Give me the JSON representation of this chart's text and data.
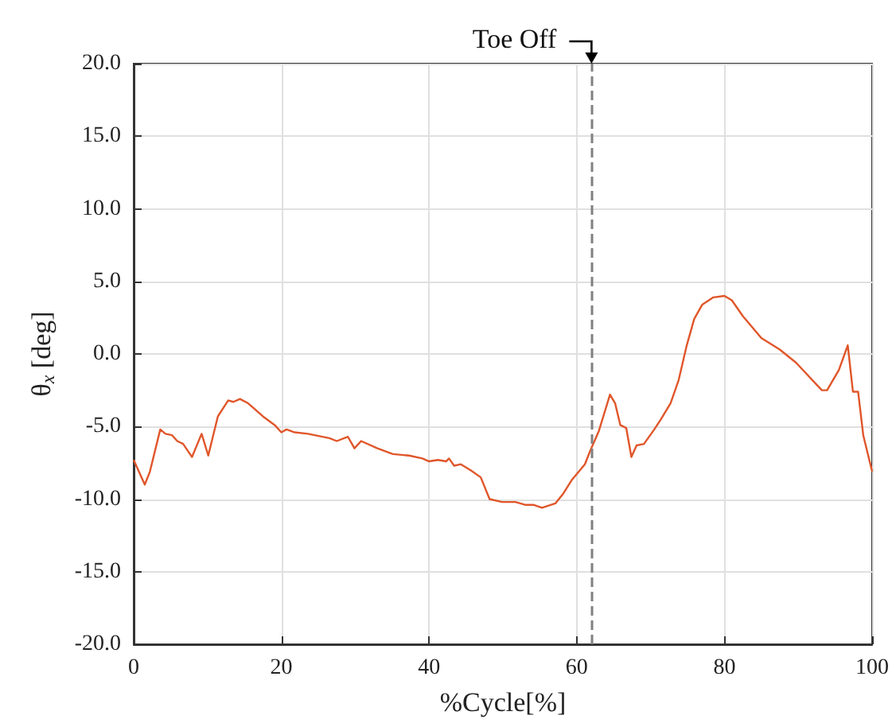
{
  "chart_data": {
    "type": "line",
    "xlabel": "%Cycle[%]",
    "ylabel": "θ$_{x}$ [deg]",
    "series": [
      {
        "color": "#e0562a",
        "x": [
          0,
          1.5,
          2.2,
          3.6,
          4.3,
          5.2,
          5.9,
          6.7,
          7.9,
          9.2,
          10.1,
          11.4,
          12.8,
          13.5,
          14.4,
          15.5,
          17.5,
          19.1,
          20,
          20.7,
          21.8,
          23.6,
          26.5,
          27.5,
          29,
          29.9,
          30.8,
          33,
          35.1,
          37.3,
          39.1,
          40,
          41.2,
          42.3,
          42.7,
          43.4,
          44.3,
          45.6,
          47,
          48.2,
          49.9,
          51.7,
          53.1,
          54.2,
          55.3,
          57.1,
          58.2,
          59.3,
          61.1,
          61.8,
          63,
          64.5,
          65.2,
          65.9,
          66.7,
          67.4,
          68.1,
          69.1,
          70.5,
          71.4,
          72.7,
          73.8,
          74.9,
          75.9,
          77,
          78.5,
          80,
          81,
          82.5,
          85,
          87.5,
          89.7,
          91.9,
          93.2,
          93.9,
          95.5,
          96.7,
          97.4,
          98.1,
          98.8,
          100
        ],
        "values": [
          -7.3,
          -9.0,
          -8.1,
          -5.2,
          -5.5,
          -5.6,
          -6.0,
          -6.2,
          -7.1,
          -5.5,
          -7.0,
          -4.3,
          -3.2,
          -3.3,
          -3.1,
          -3.4,
          -4.3,
          -4.9,
          -5.4,
          -5.2,
          -5.4,
          -5.5,
          -5.8,
          -6.0,
          -5.7,
          -6.5,
          -6.0,
          -6.5,
          -6.9,
          -7.0,
          -7.2,
          -7.4,
          -7.3,
          -7.4,
          -7.2,
          -7.7,
          -7.6,
          -8.0,
          -8.5,
          -10.0,
          -10.2,
          -10.2,
          -10.4,
          -10.4,
          -10.6,
          -10.3,
          -9.6,
          -8.7,
          -7.6,
          -6.7,
          -5.3,
          -2.8,
          -3.4,
          -4.9,
          -5.1,
          -7.1,
          -6.3,
          -6.2,
          -5.2,
          -4.5,
          -3.4,
          -1.8,
          0.6,
          2.4,
          3.4,
          3.9,
          4.0,
          3.7,
          2.6,
          1.1,
          0.3,
          -0.6,
          -1.8,
          -2.5,
          -2.5,
          -1.1,
          0.6,
          -2.6,
          -2.6,
          -5.6,
          -8.1
        ]
      }
    ],
    "xlim": [
      0,
      100
    ],
    "xticks": [
      0,
      20,
      40,
      60,
      80,
      100
    ],
    "ylim": [
      -20,
      20
    ],
    "yticks": [
      {
        "value": -20,
        "label": "-20.0"
      },
      {
        "value": -15,
        "label": "-15.0"
      },
      {
        "value": -10,
        "label": "-10.0"
      },
      {
        "value": -5,
        "label": "-5.0"
      },
      {
        "value": 0,
        "label": "0.0"
      },
      {
        "value": 5,
        "label": "5.0"
      },
      {
        "value": 10,
        "label": "10.0"
      },
      {
        "value": 15,
        "label": "15.0"
      },
      {
        "value": 20,
        "label": "20.0"
      }
    ],
    "grid": true,
    "marker": "none",
    "line_style": "solid",
    "ref_lines": [
      {
        "axis": "x",
        "value": 62,
        "label": "Toe Off",
        "color": "#808080",
        "line_style": "dashed"
      }
    ]
  }
}
